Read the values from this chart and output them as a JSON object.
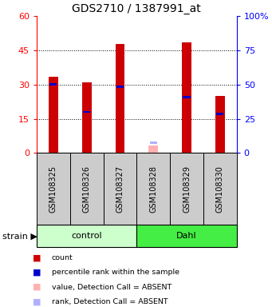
{
  "title": "GDS2710 / 1387991_at",
  "samples": [
    "GSM108325",
    "GSM108326",
    "GSM108327",
    "GSM108328",
    "GSM108329",
    "GSM108330"
  ],
  "count_values": [
    33.5,
    31.0,
    48.0,
    0.0,
    48.5,
    25.0
  ],
  "percentile_values": [
    30.0,
    18.0,
    29.0,
    0.0,
    24.5,
    17.0
  ],
  "absent_count": [
    0.0,
    0.0,
    0.0,
    3.2,
    0.0,
    0.0
  ],
  "absent_rank": [
    0.0,
    0.0,
    0.0,
    4.5,
    0.0,
    0.0
  ],
  "absent_flags": [
    false,
    false,
    false,
    true,
    false,
    false
  ],
  "groups": [
    "control",
    "control",
    "control",
    "Dahl",
    "Dahl",
    "Dahl"
  ],
  "group_names": [
    "control",
    "Dahl"
  ],
  "group_ranges": [
    [
      0,
      2
    ],
    [
      3,
      5
    ]
  ],
  "group_bg": [
    "#ccffcc",
    "#44ee44"
  ],
  "ylim": [
    0,
    60
  ],
  "y2lim": [
    0,
    100
  ],
  "yticks": [
    0,
    15,
    30,
    45,
    60
  ],
  "y2ticks": [
    0,
    25,
    50,
    75,
    100
  ],
  "red_color": "#cc0000",
  "blue_color": "#0000cc",
  "pink_color": "#ffb0b0",
  "lightblue_color": "#b0b0ff",
  "bg_sample": "#cccccc",
  "legend_labels": [
    "count",
    "percentile rank within the sample",
    "value, Detection Call = ABSENT",
    "rank, Detection Call = ABSENT"
  ]
}
